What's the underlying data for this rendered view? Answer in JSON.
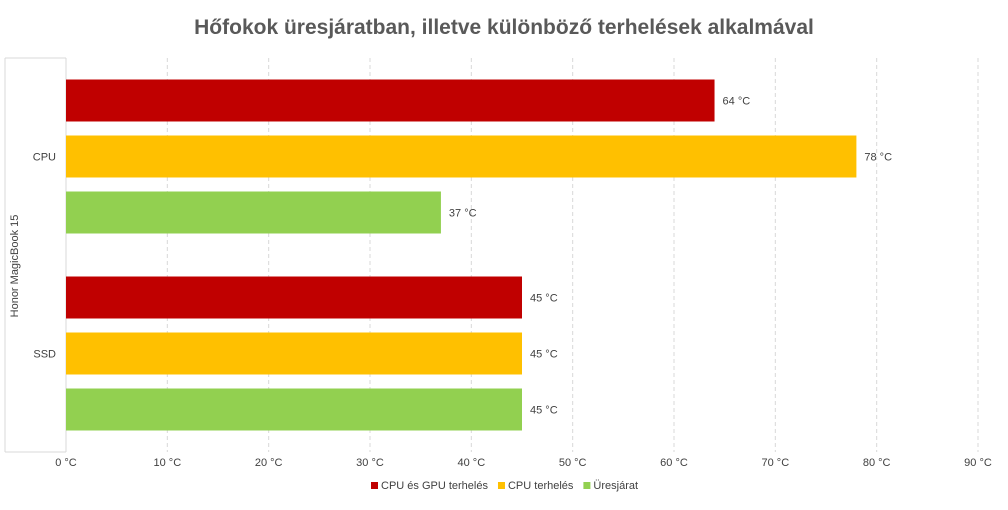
{
  "chart_data": {
    "type": "bar",
    "orientation": "horizontal",
    "title": "Hőfokok üresjáratban, illetve különböző terhelések alkalmával",
    "group_label": "Honor MagicBook 15",
    "categories": [
      "CPU",
      "SSD"
    ],
    "series": [
      {
        "name": "CPU és GPU terhelés",
        "color": "#c00000",
        "values": [
          64,
          45
        ],
        "labels": [
          "64 °C",
          "45 °C"
        ]
      },
      {
        "name": "CPU terhelés",
        "color": "#ffc000",
        "values": [
          78,
          45
        ],
        "labels": [
          "78 °C",
          "45 °C"
        ]
      },
      {
        "name": "Üresjárat",
        "color": "#92d050",
        "values": [
          37,
          45
        ],
        "labels": [
          "37 °C",
          "45 °C"
        ]
      }
    ],
    "x_ticks": [
      "0 °C",
      "10 °C",
      "20 °C",
      "30 °C",
      "40 °C",
      "50 °C",
      "60 °C",
      "70 °C",
      "80 °C",
      "90 °C"
    ],
    "xlim": [
      0,
      90
    ],
    "grid": "vertical dashed",
    "legend_position": "bottom"
  }
}
